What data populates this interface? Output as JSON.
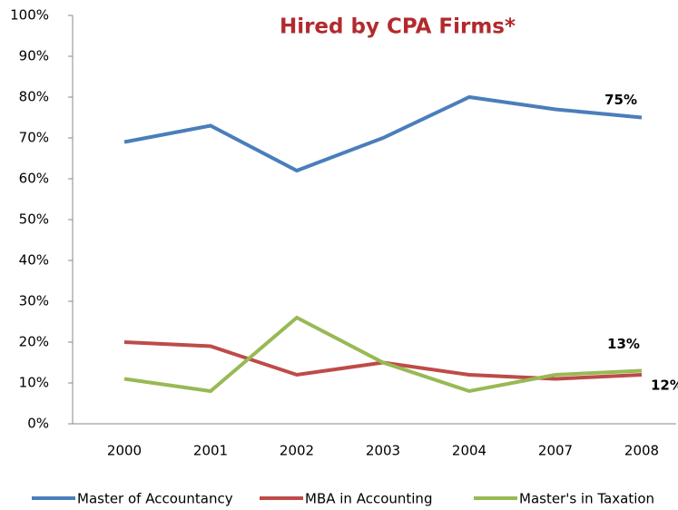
{
  "chart_data": {
    "type": "line",
    "title": "Hired by CPA Firms*",
    "categories": [
      "2000",
      "2001",
      "2002",
      "2003",
      "2004",
      "2007",
      "2008"
    ],
    "series": [
      {
        "name": "Master of Accountancy",
        "color": "#4a7ebb",
        "values": [
          69,
          73,
          62,
          70,
          80,
          77,
          75
        ],
        "value_labels": [
          null,
          null,
          null,
          null,
          null,
          null,
          "75%"
        ]
      },
      {
        "name": "MBA in Accounting",
        "color": "#be4b48",
        "values": [
          20,
          19,
          12,
          15,
          12,
          11,
          12
        ],
        "value_labels": [
          null,
          null,
          null,
          null,
          null,
          null,
          "12%"
        ]
      },
      {
        "name": "Master's in Taxation",
        "color": "#98b954",
        "values": [
          11,
          8,
          26,
          15,
          8,
          12,
          13
        ],
        "value_labels": [
          null,
          null,
          null,
          null,
          null,
          null,
          "13%"
        ]
      }
    ],
    "ylim": [
      0,
      100
    ],
    "yticks": [
      {
        "value": 0,
        "label": "0%"
      },
      {
        "value": 10,
        "label": "10%"
      },
      {
        "value": 20,
        "label": "20%"
      },
      {
        "value": 30,
        "label": "30%"
      },
      {
        "value": 40,
        "label": "40%"
      },
      {
        "value": 50,
        "label": "50%"
      },
      {
        "value": 60,
        "label": "60%"
      },
      {
        "value": 70,
        "label": "70%"
      },
      {
        "value": 80,
        "label": "80%"
      },
      {
        "value": 90,
        "label": "90%"
      },
      {
        "value": 100,
        "label": "100%"
      }
    ],
    "grid": false
  }
}
